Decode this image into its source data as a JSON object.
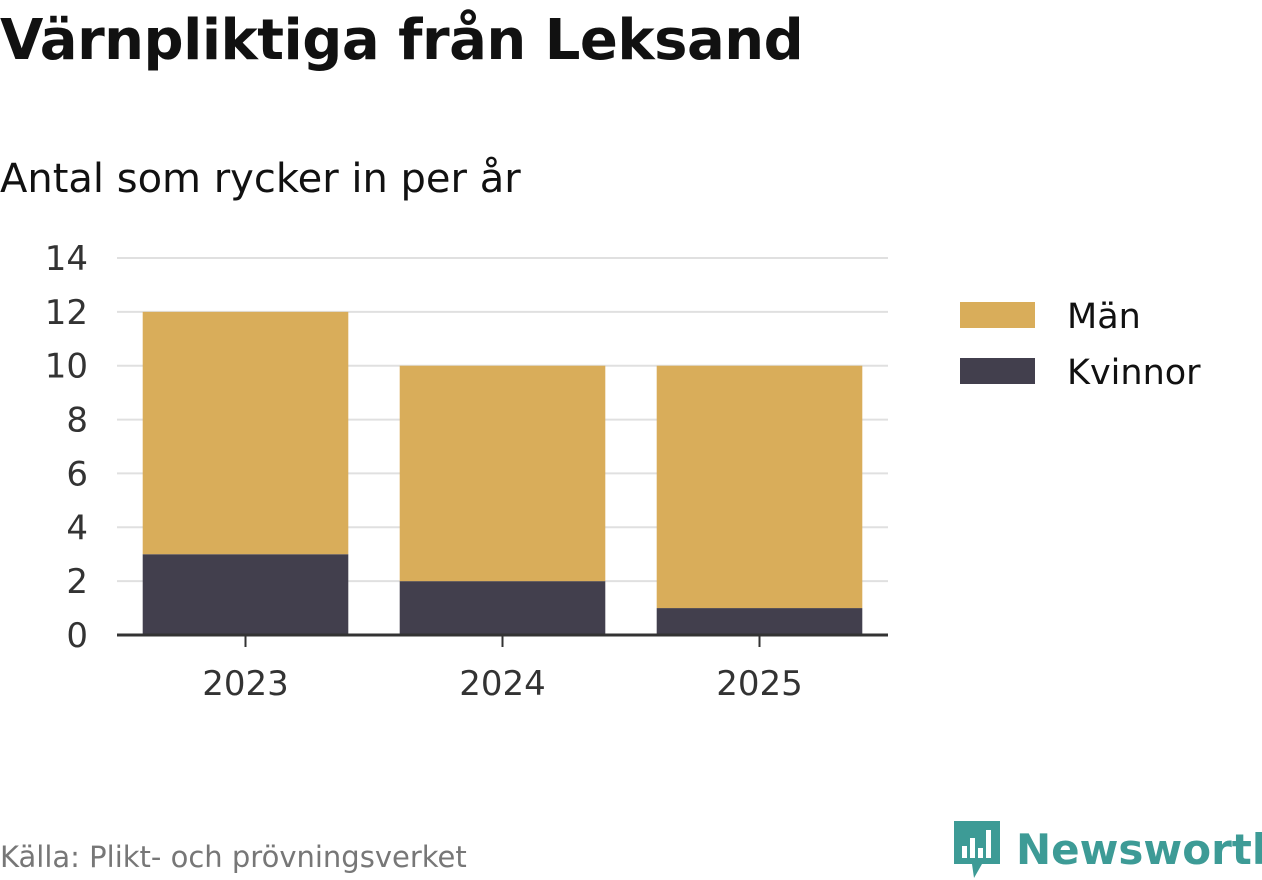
{
  "title": "Värnpliktiga från Leksand",
  "subtitle": "Antal som rycker in per år",
  "source": "Källa: Plikt- och prövningsverket",
  "brand": {
    "name": "Newsworthy",
    "icon": "newsworthy-logo-icon",
    "color": "#3d9b96"
  },
  "chart_data": {
    "type": "bar",
    "stacked": true,
    "categories": [
      "2023",
      "2024",
      "2025"
    ],
    "series": [
      {
        "name": "Kvinnor",
        "values": [
          3,
          2,
          1
        ],
        "color": "#423f4d"
      },
      {
        "name": "Män",
        "values": [
          9,
          8,
          9
        ],
        "color": "#d9ad5a"
      }
    ],
    "legend_order": [
      "Män",
      "Kvinnor"
    ],
    "ylim": [
      0,
      14
    ],
    "yticks": [
      "0",
      "2",
      "4",
      "6",
      "8",
      "10",
      "12",
      "14"
    ],
    "grid": true,
    "legend_position": "right"
  }
}
